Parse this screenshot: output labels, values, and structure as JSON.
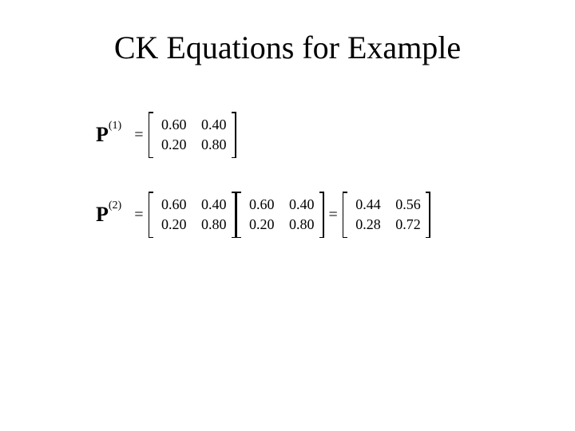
{
  "title": "CK Equations for Example",
  "colors": {
    "background": "#ffffff",
    "text": "#000000"
  },
  "equations": {
    "eq1": {
      "label_base": "P",
      "label_sup": "(1)",
      "matrices": {
        "m1": {
          "rows": [
            [
              "0.60",
              "0.40"
            ],
            [
              "0.20",
              "0.80"
            ]
          ]
        }
      }
    },
    "eq2": {
      "label_base": "P",
      "label_sup": "(2)",
      "matrices": {
        "m1": {
          "rows": [
            [
              "0.60",
              "0.40"
            ],
            [
              "0.20",
              "0.80"
            ]
          ]
        },
        "m2": {
          "rows": [
            [
              "0.60",
              "0.40"
            ],
            [
              "0.20",
              "0.80"
            ]
          ]
        },
        "m3": {
          "rows": [
            [
              "0.44",
              "0.56"
            ],
            [
              "0.28",
              "0.72"
            ]
          ]
        }
      }
    }
  },
  "equals_sign": "="
}
